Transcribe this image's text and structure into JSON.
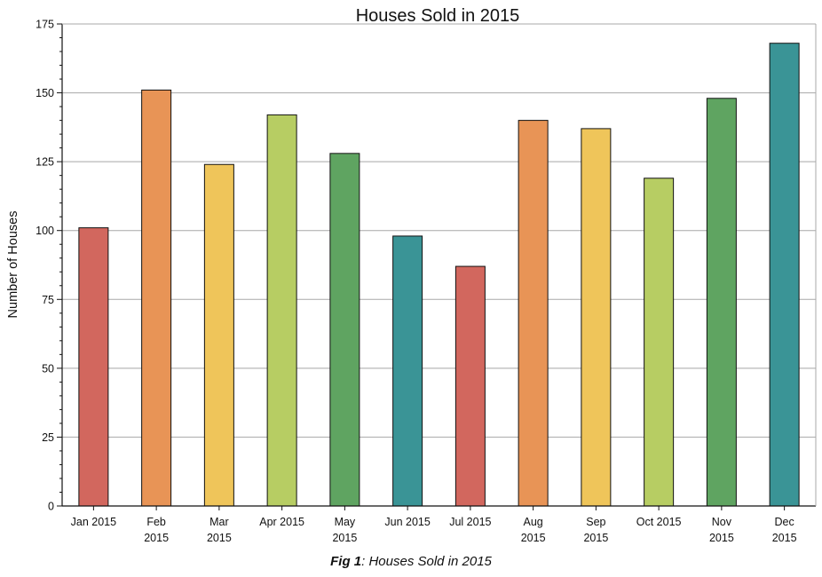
{
  "chart_data": {
    "type": "bar",
    "title": "Houses Sold in 2015",
    "xlabel": "",
    "ylabel": "Number of Houses",
    "ylim": [
      0,
      175
    ],
    "yticks": [
      0,
      25,
      50,
      75,
      100,
      125,
      150,
      175
    ],
    "grid": true,
    "categories": [
      [
        "Jan 2015"
      ],
      [
        "Feb",
        "2015"
      ],
      [
        "Mar",
        "2015"
      ],
      [
        "Apr 2015"
      ],
      [
        "May",
        "2015"
      ],
      [
        "Jun 2015"
      ],
      [
        "Jul 2015"
      ],
      [
        "Aug",
        "2015"
      ],
      [
        "Sep",
        "2015"
      ],
      [
        "Oct 2015"
      ],
      [
        "Nov",
        "2015"
      ],
      [
        "Dec",
        "2015"
      ]
    ],
    "values": [
      101,
      151,
      124,
      142,
      128,
      98,
      87,
      140,
      137,
      119,
      148,
      168
    ],
    "colors": [
      "#d2675e",
      "#e89456",
      "#efc55a",
      "#b7cd63",
      "#5fa461",
      "#3a9496",
      "#d2675e",
      "#e89456",
      "#efc55a",
      "#b7cd63",
      "#5fa461",
      "#3a9496"
    ]
  },
  "caption": {
    "label": "Fig 1",
    "text": ": Houses Sold in 2015"
  }
}
